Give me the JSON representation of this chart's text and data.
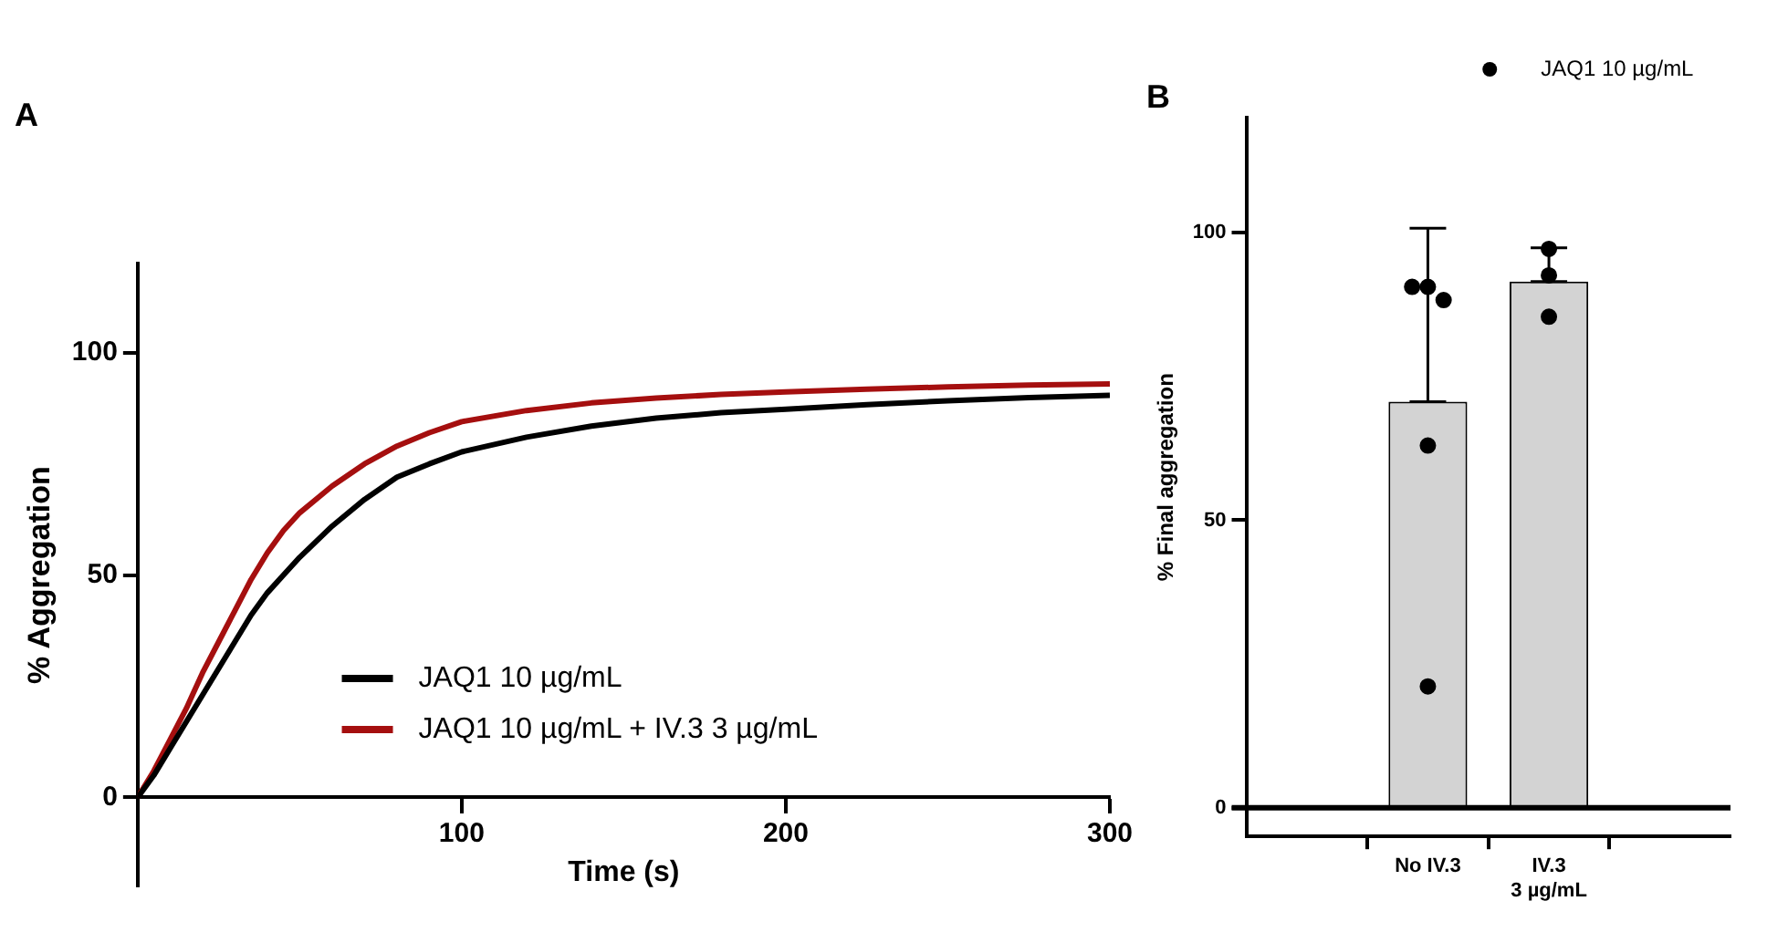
{
  "chart_data": [
    {
      "type": "line",
      "title": "A",
      "xlabel": "Time (s)",
      "ylabel": "% Aggregation",
      "xlim": [
        0,
        300
      ],
      "xticks": [
        100,
        200,
        300
      ],
      "ylim": [
        -20,
        120
      ],
      "yticks": [
        0,
        50,
        100
      ],
      "grid": false,
      "legend": "bottom right",
      "marker": "none",
      "line_style": "solid",
      "series": [
        {
          "name": "JAQ1 10 µg/mL",
          "color": "#000000",
          "x": [
            0,
            5,
            10,
            15,
            20,
            25,
            30,
            35,
            40,
            45,
            50,
            60,
            70,
            80,
            90,
            100,
            120,
            140,
            160,
            180,
            200,
            225,
            250,
            275,
            300
          ],
          "values": [
            0,
            5,
            11,
            17,
            23,
            29,
            35,
            41,
            46,
            50,
            54,
            61,
            67,
            72,
            75,
            77.7,
            81,
            83.5,
            85.3,
            86.5,
            87.3,
            88.3,
            89.2,
            89.9,
            90.4
          ]
        },
        {
          "name": "JAQ1 10 µg/mL + IV.3 3 µg/mL",
          "color": "#a50f0f",
          "x": [
            0,
            5,
            10,
            15,
            20,
            25,
            30,
            35,
            40,
            45,
            50,
            60,
            70,
            80,
            90,
            100,
            120,
            140,
            160,
            180,
            200,
            225,
            250,
            275,
            300
          ],
          "values": [
            0,
            6,
            13,
            20,
            28,
            35,
            42,
            49,
            55,
            60,
            64,
            70,
            75,
            79,
            82,
            84.5,
            87,
            88.7,
            89.8,
            90.6,
            91.2,
            91.8,
            92.3,
            92.7,
            93
          ]
        }
      ]
    },
    {
      "type": "bar",
      "title": "B",
      "ylabel": "% Final aggregation",
      "categories": [
        "No IV.3",
        "IV.3\n3 µg/mL"
      ],
      "ylim": [
        -5,
        120
      ],
      "yticks": [
        0,
        50,
        100
      ],
      "grid": false,
      "legend": "top right",
      "marker": "circle",
      "ref_lines": [
        {
          "axis": "y",
          "value": 0,
          "color": "#000000"
        }
      ],
      "series": [
        {
          "type": "bar",
          "color": "#d3d3d3",
          "values": [
            70.6,
            91.5
          ],
          "errors": [
            [
              70.6,
              100.8
            ],
            [
              91.5,
              97.4
            ]
          ]
        },
        {
          "type": "scatter",
          "name": "JAQ1 10 µg/mL",
          "color": "#000000",
          "x": [
            "No IV.3",
            "No IV.3",
            "No IV.3",
            "No IV.3",
            "No IV.3",
            "IV.3\n3 µg/mL",
            "IV.3\n3 µg/mL",
            "IV.3\n3 µg/mL"
          ],
          "values": [
            90.6,
            90.6,
            88.3,
            63,
            21.1,
            97.2,
            92.6,
            85.4
          ]
        }
      ]
    }
  ]
}
